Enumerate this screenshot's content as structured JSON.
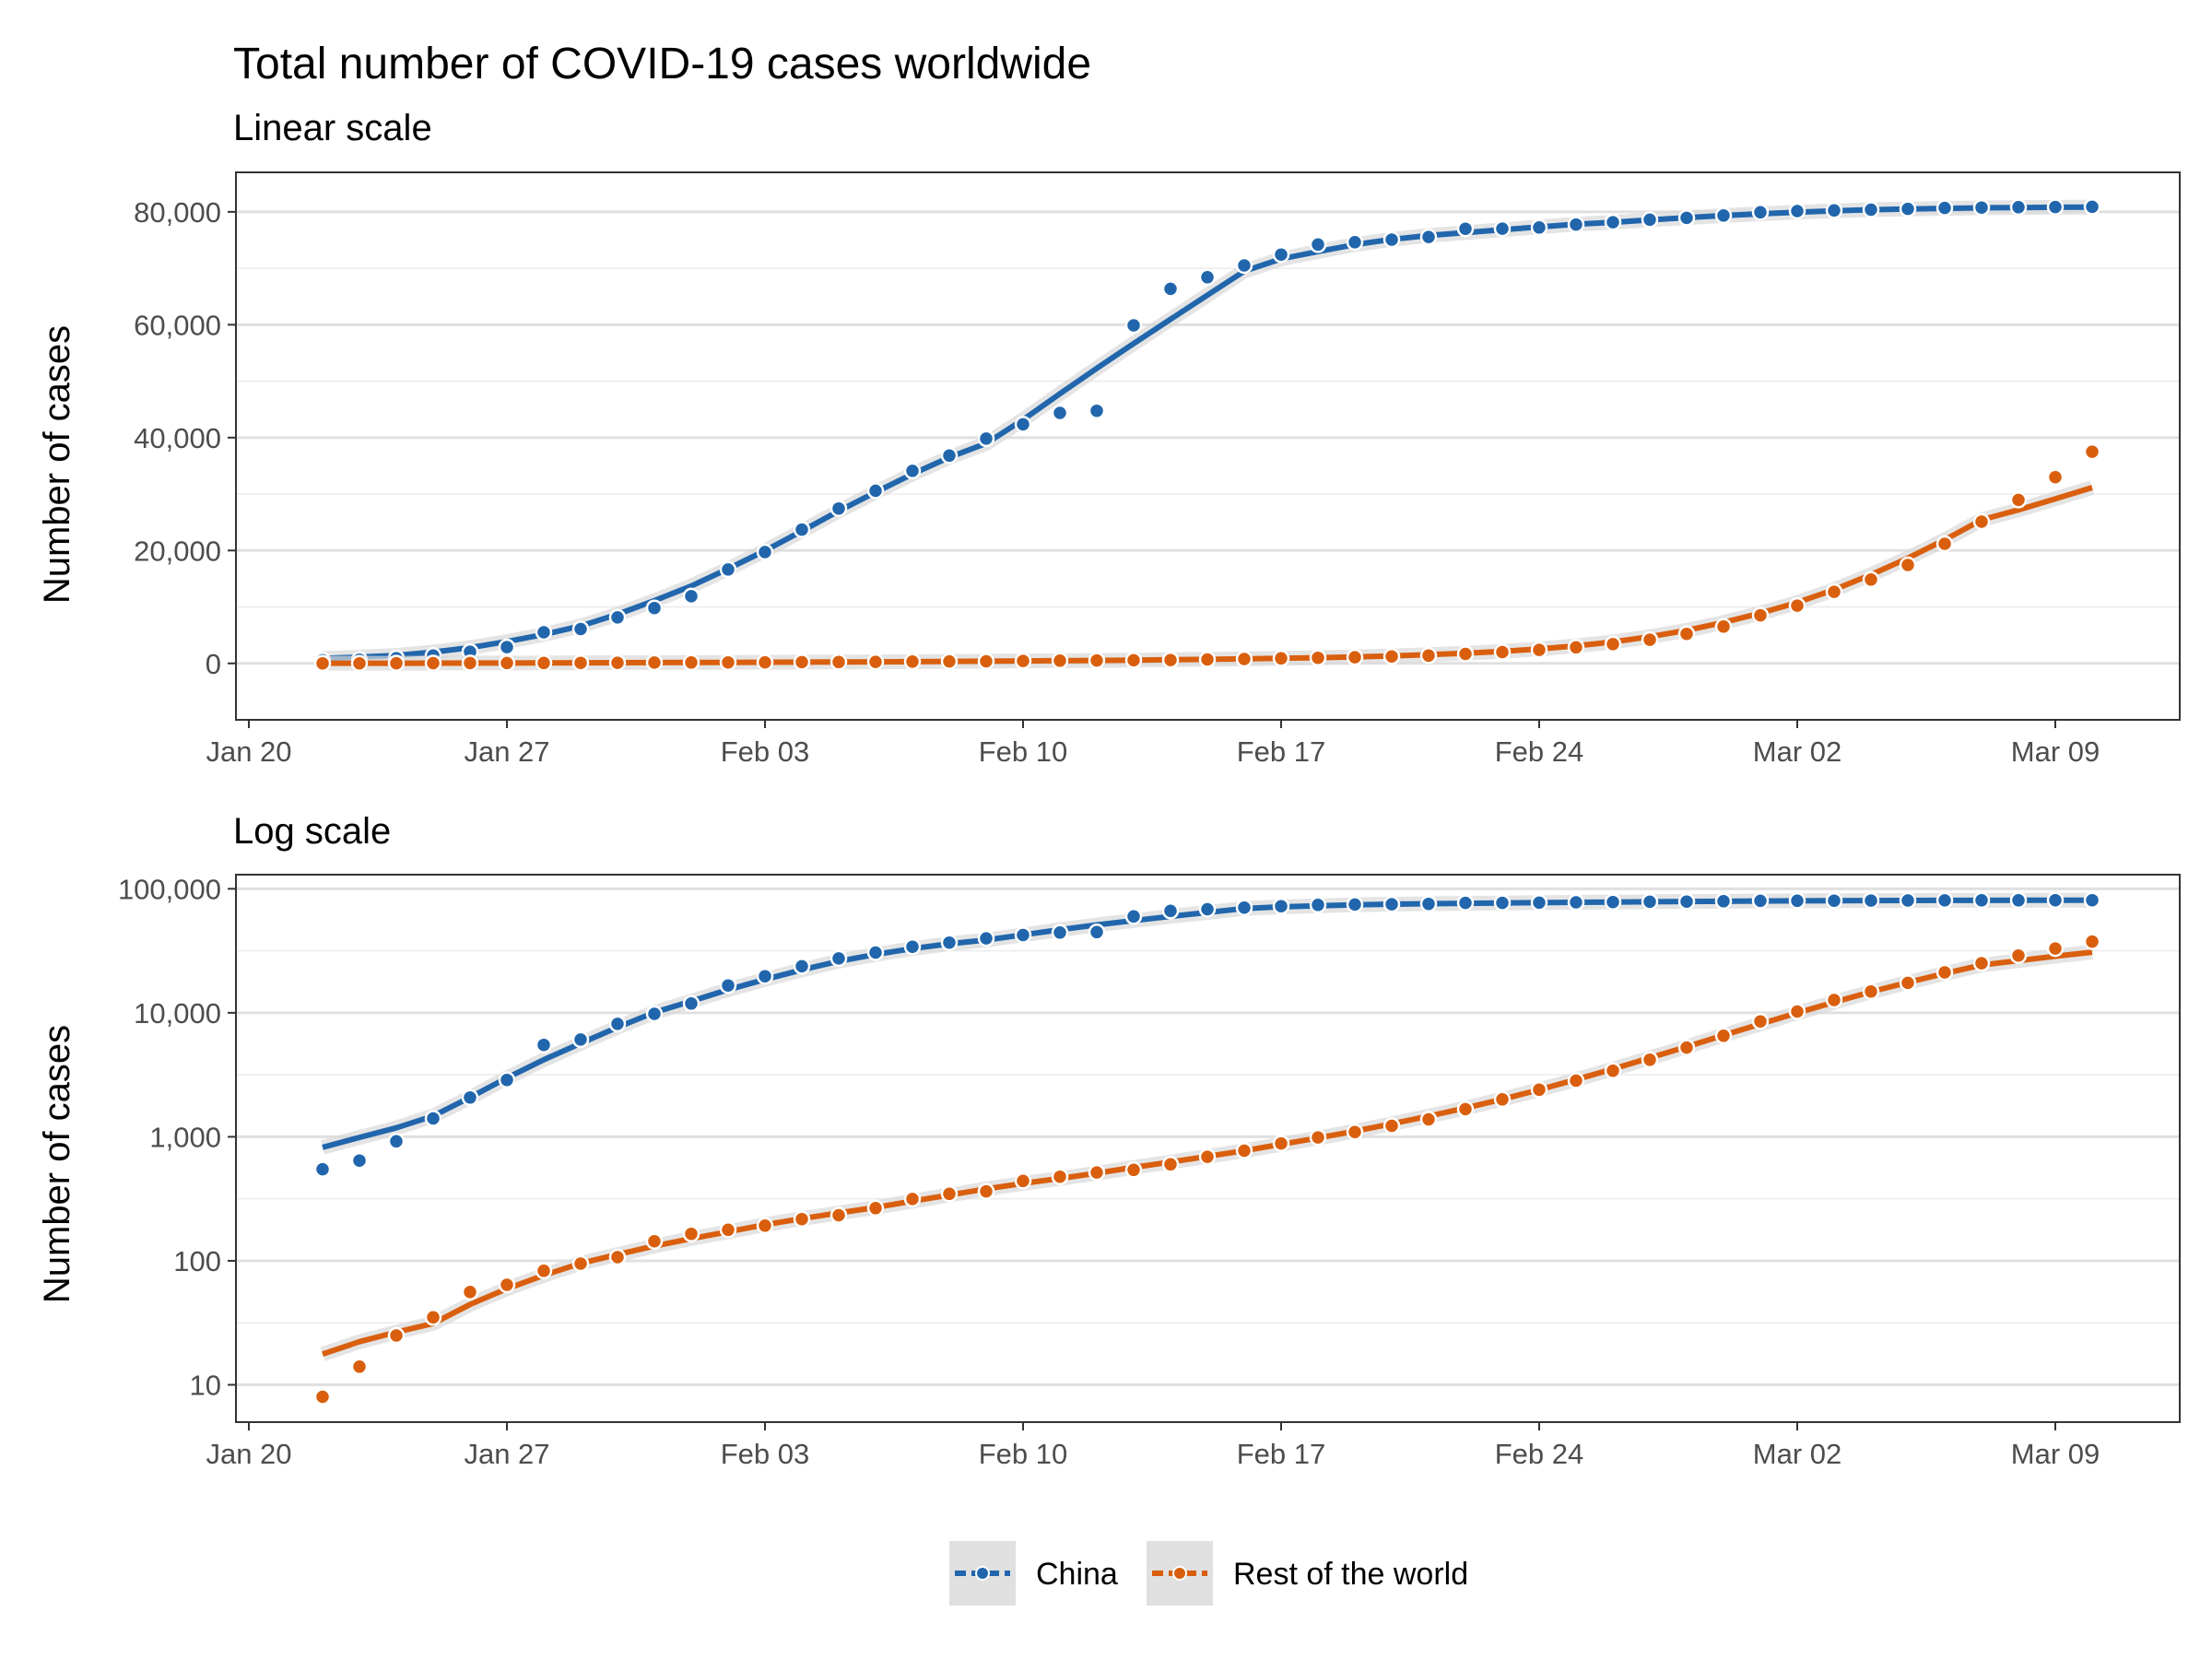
{
  "chart_data": {
    "type": "line",
    "title": "Total number of COVID-19 cases worldwide",
    "colors": {
      "China": "#2166ac",
      "Rest of the world": "#d95f0e"
    },
    "x_dates": [
      "Jan 22",
      "Jan 23",
      "Jan 24",
      "Jan 25",
      "Jan 26",
      "Jan 27",
      "Jan 28",
      "Jan 29",
      "Jan 30",
      "Jan 31",
      "Feb 01",
      "Feb 02",
      "Feb 03",
      "Feb 04",
      "Feb 05",
      "Feb 06",
      "Feb 07",
      "Feb 08",
      "Feb 09",
      "Feb 10",
      "Feb 11",
      "Feb 12",
      "Feb 13",
      "Feb 14",
      "Feb 15",
      "Feb 16",
      "Feb 17",
      "Feb 18",
      "Feb 19",
      "Feb 20",
      "Feb 21",
      "Feb 22",
      "Feb 23",
      "Feb 24",
      "Feb 25",
      "Feb 26",
      "Feb 27",
      "Feb 28",
      "Feb 29",
      "Mar 01",
      "Mar 02",
      "Mar 03",
      "Mar 04",
      "Mar 05",
      "Mar 06",
      "Mar 07",
      "Mar 08",
      "Mar 09",
      "Mar 10"
    ],
    "x_ticks": [
      "Jan 20",
      "Jan 27",
      "Feb 03",
      "Feb 10",
      "Feb 17",
      "Feb 24",
      "Mar 02",
      "Mar 09"
    ],
    "series": [
      {
        "name": "China",
        "values": [
          548,
          643,
          920,
          1406,
          2075,
          2877,
          5509,
          6087,
          8141,
          9802,
          11891,
          16630,
          19716,
          23707,
          27440,
          30587,
          34110,
          36814,
          39829,
          42354,
          44386,
          44759,
          59895,
          66358,
          68413,
          70513,
          72434,
          74211,
          74619,
          75077,
          75550,
          77001,
          77022,
          77241,
          77754,
          78166,
          78600,
          78928,
          79356,
          79932,
          80136,
          80261,
          80386,
          80537,
          80690,
          80770,
          80823,
          80860,
          80887
        ]
      },
      {
        "name": "Rest of the world",
        "values": [
          8,
          14,
          25,
          35,
          56,
          64,
          83,
          95,
          107,
          144,
          165,
          178,
          192,
          217,
          233,
          266,
          315,
          347,
          363,
          441,
          477,
          516,
          541,
          600,
          690,
          772,
          884,
          988,
          1093,
          1227,
          1382,
          1671,
          2003,
          2400,
          2836,
          3413,
          4184,
          5240,
          6526,
          8523,
          10237,
          12684,
          14848,
          17434,
          21183,
          25114,
          28967,
          33001,
          37500
        ]
      }
    ],
    "panels": [
      {
        "subtitle": "Linear scale",
        "ylabel": "Number of cases",
        "scale": "linear",
        "ylim": [
          -10000,
          87000
        ],
        "y_ticks": [
          0,
          20000,
          40000,
          60000,
          80000
        ],
        "y_tick_labels": [
          "0",
          "20,000",
          "40,000",
          "60,000",
          "80,000"
        ]
      },
      {
        "subtitle": "Log scale",
        "ylabel": "Number of cases",
        "scale": "log",
        "ylim": [
          5,
          130000
        ],
        "y_ticks": [
          10,
          100,
          1000,
          10000,
          100000
        ],
        "y_tick_labels": [
          "10",
          "100",
          "1,000",
          "10,000",
          "100,000"
        ]
      }
    ],
    "grid": true,
    "legend_position": "bottom",
    "legend": [
      "China",
      "Rest of the world"
    ]
  }
}
